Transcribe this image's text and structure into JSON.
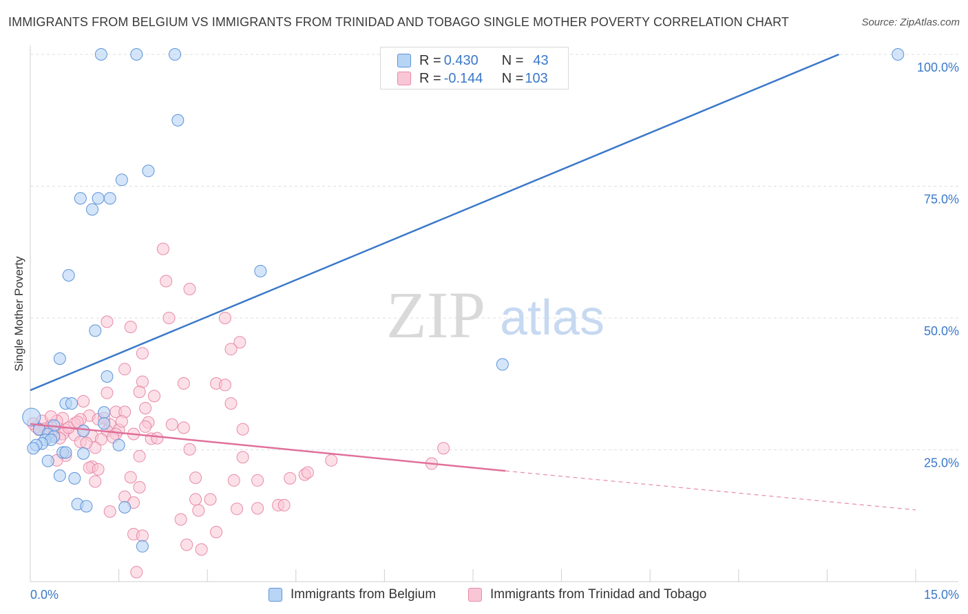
{
  "title": "IMMIGRANTS FROM BELGIUM VS IMMIGRANTS FROM TRINIDAD AND TOBAGO SINGLE MOTHER POVERTY CORRELATION CHART",
  "source": "Source: ZipAtlas.com",
  "watermark": {
    "zip": "ZIP",
    "atlas": "atlas"
  },
  "stats": [
    {
      "r_label": "R = ",
      "r_value": "0.430",
      "n_label": "N = ",
      "n_value": "43",
      "color": "#5b93d9"
    },
    {
      "r_label": "R = ",
      "r_value": "-0.144",
      "n_label": "N = ",
      "n_value": "103",
      "color": "#e889a8"
    }
  ],
  "legend": [
    {
      "label": "Immigrants from Belgium",
      "color": "#5b93d9"
    },
    {
      "label": "Immigrants from Trinidad and Tobago",
      "color": "#e889a8"
    }
  ],
  "chart_data": {
    "type": "scatter",
    "title": "IMMIGRANTS FROM BELGIUM VS IMMIGRANTS FROM TRINIDAD AND TOBAGO SINGLE MOTHER POVERTY CORRELATION CHART",
    "xlabel": "",
    "ylabel": "Single Mother Poverty",
    "xlim": [
      0,
      15
    ],
    "ylim": [
      0,
      100
    ],
    "x_tick_labels": [
      "0.0%",
      "15.0%"
    ],
    "y_ticks": [
      25,
      50,
      75,
      100
    ],
    "y_tick_labels": [
      "25.0%",
      "50.0%",
      "75.0%",
      "100.0%"
    ],
    "grid": true,
    "legend_position": "bottom",
    "series": [
      {
        "name": "Immigrants from Belgium",
        "color": "#5b93d9",
        "trendline": {
          "x": [
            0,
            13.7
          ],
          "y": [
            36.3,
            100
          ],
          "dashed_extension_to": null
        },
        "points": [
          [
            1.2,
            100
          ],
          [
            1.8,
            100
          ],
          [
            2.45,
            100
          ],
          [
            14.7,
            100
          ],
          [
            2.5,
            87.5
          ],
          [
            2.0,
            77.9
          ],
          [
            1.55,
            76.2
          ],
          [
            0.85,
            72.7
          ],
          [
            1.15,
            72.7
          ],
          [
            1.35,
            72.7
          ],
          [
            1.05,
            70.6
          ],
          [
            3.9,
            58.9
          ],
          [
            0.65,
            58.1
          ],
          [
            1.1,
            47.6
          ],
          [
            0.5,
            42.3
          ],
          [
            1.3,
            38.9
          ],
          [
            8.0,
            41.2
          ],
          [
            0.6,
            33.8
          ],
          [
            0.7,
            33.8
          ],
          [
            1.25,
            32.1
          ],
          [
            1.25,
            30.0
          ],
          [
            0.4,
            29.6
          ],
          [
            0.15,
            28.9
          ],
          [
            0.9,
            28.6
          ],
          [
            0.3,
            28.0
          ],
          [
            0.4,
            27.5
          ],
          [
            0.25,
            26.9
          ],
          [
            0.35,
            26.9
          ],
          [
            0.2,
            26.2
          ],
          [
            0.1,
            25.9
          ],
          [
            1.5,
            25.9
          ],
          [
            0.55,
            24.5
          ],
          [
            0.6,
            24.5
          ],
          [
            0.9,
            24.3
          ],
          [
            0.05,
            25.3
          ],
          [
            0.3,
            22.9
          ],
          [
            0.5,
            20.1
          ],
          [
            0.75,
            19.6
          ],
          [
            0.8,
            14.7
          ],
          [
            0.95,
            14.3
          ],
          [
            1.6,
            14.1
          ],
          [
            1.9,
            6.7
          ],
          [
            0.02,
            31.2
          ]
        ]
      },
      {
        "name": "Immigrants from Trinidad and Tobago",
        "color": "#e889a8",
        "trendline": {
          "x": [
            0,
            8.05
          ],
          "y": [
            29.9,
            21.0
          ],
          "dashed_to": [
            15,
            13.6
          ]
        },
        "points": [
          [
            2.25,
            63.1
          ],
          [
            2.3,
            57.0
          ],
          [
            2.7,
            55.5
          ],
          [
            1.3,
            49.3
          ],
          [
            1.7,
            48.3
          ],
          [
            2.35,
            50.0
          ],
          [
            3.3,
            50.0
          ],
          [
            3.55,
            45.4
          ],
          [
            3.4,
            44.1
          ],
          [
            1.9,
            43.3
          ],
          [
            1.6,
            40.3
          ],
          [
            1.9,
            37.9
          ],
          [
            2.6,
            37.6
          ],
          [
            3.15,
            37.6
          ],
          [
            3.3,
            37.3
          ],
          [
            1.3,
            35.8
          ],
          [
            1.85,
            36.0
          ],
          [
            2.1,
            35.2
          ],
          [
            0.9,
            34.2
          ],
          [
            3.4,
            33.8
          ],
          [
            1.45,
            32.2
          ],
          [
            1.6,
            32.2
          ],
          [
            1.95,
            32.9
          ],
          [
            1.0,
            31.5
          ],
          [
            0.55,
            31.0
          ],
          [
            0.85,
            30.8
          ],
          [
            1.15,
            30.8
          ],
          [
            2.0,
            30.2
          ],
          [
            2.4,
            29.8
          ],
          [
            0.45,
            30.5
          ],
          [
            0.75,
            30.0
          ],
          [
            1.35,
            29.8
          ],
          [
            0.2,
            30.5
          ],
          [
            0.35,
            29.6
          ],
          [
            0.1,
            29.3
          ],
          [
            0.25,
            29.0
          ],
          [
            0.6,
            28.8
          ],
          [
            0.9,
            28.6
          ],
          [
            1.3,
            28.6
          ],
          [
            1.5,
            28.8
          ],
          [
            2.6,
            29.2
          ],
          [
            3.6,
            28.9
          ],
          [
            0.4,
            28.5
          ],
          [
            0.55,
            28.0
          ],
          [
            0.75,
            27.8
          ],
          [
            1.05,
            27.6
          ],
          [
            1.45,
            28.0
          ],
          [
            1.75,
            28.0
          ],
          [
            2.05,
            27.1
          ],
          [
            1.2,
            27.0
          ],
          [
            0.85,
            26.5
          ],
          [
            1.1,
            25.4
          ],
          [
            0.95,
            26.3
          ],
          [
            2.7,
            25.1
          ],
          [
            0.6,
            23.9
          ],
          [
            0.45,
            23.0
          ],
          [
            1.85,
            23.8
          ],
          [
            3.6,
            23.6
          ],
          [
            5.1,
            23.0
          ],
          [
            7.0,
            25.3
          ],
          [
            6.8,
            22.4
          ],
          [
            1.05,
            21.8
          ],
          [
            1.0,
            21.6
          ],
          [
            1.15,
            21.3
          ],
          [
            1.7,
            19.8
          ],
          [
            2.8,
            19.7
          ],
          [
            3.45,
            19.2
          ],
          [
            3.85,
            19.2
          ],
          [
            4.4,
            19.6
          ],
          [
            4.65,
            20.3
          ],
          [
            4.7,
            20.7
          ],
          [
            1.1,
            19.0
          ],
          [
            1.85,
            17.9
          ],
          [
            1.6,
            16.1
          ],
          [
            1.75,
            15.0
          ],
          [
            2.8,
            15.6
          ],
          [
            3.05,
            15.6
          ],
          [
            4.2,
            14.5
          ],
          [
            4.3,
            14.5
          ],
          [
            3.5,
            13.8
          ],
          [
            3.85,
            13.9
          ],
          [
            1.35,
            13.3
          ],
          [
            2.85,
            13.5
          ],
          [
            2.55,
            11.8
          ],
          [
            3.15,
            9.4
          ],
          [
            1.75,
            9.0
          ],
          [
            1.9,
            8.7
          ],
          [
            2.65,
            7.0
          ],
          [
            2.9,
            6.1
          ],
          [
            1.8,
            1.8
          ],
          [
            0.05,
            30.0
          ],
          [
            0.15,
            28.8
          ],
          [
            0.3,
            28.3
          ],
          [
            0.4,
            27.8
          ],
          [
            0.65,
            29.2
          ],
          [
            0.8,
            30.3
          ],
          [
            1.25,
            31.0
          ],
          [
            1.55,
            30.4
          ],
          [
            0.35,
            31.3
          ],
          [
            0.5,
            27.2
          ],
          [
            1.4,
            27.4
          ],
          [
            2.15,
            27.2
          ],
          [
            1.95,
            29.4
          ]
        ]
      }
    ]
  }
}
